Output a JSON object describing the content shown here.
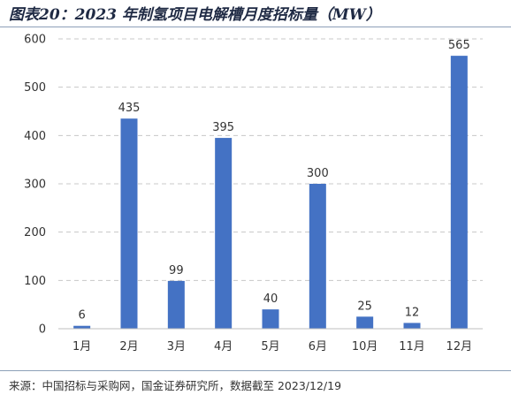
{
  "title": "图表20：2023 年制氢项目电解槽月度招标量（MW）",
  "source": "来源：中国招标与采购网，国金证券研究所，数据截至 2023/12/19",
  "chart_data": {
    "type": "bar",
    "categories": [
      "1月",
      "2月",
      "3月",
      "4月",
      "5月",
      "6月",
      "10月",
      "11月",
      "12月"
    ],
    "values": [
      6,
      435,
      99,
      395,
      40,
      300,
      25,
      12,
      565
    ],
    "yticks": [
      0,
      100,
      200,
      300,
      400,
      500,
      600
    ],
    "ylim": [
      0,
      600
    ],
    "bar_color": "#4472c4",
    "grid": "horizontal-dashed",
    "legend": "none"
  }
}
